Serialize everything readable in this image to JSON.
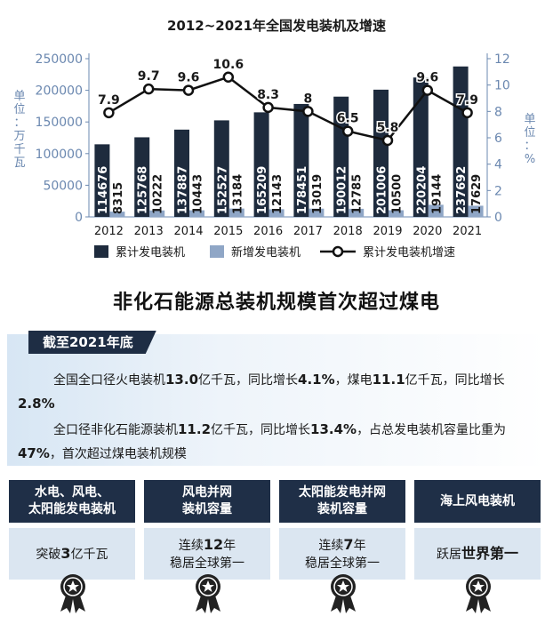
{
  "chart_data": {
    "type": "bar",
    "title": "2012~2021年全国发电装机及增速",
    "categories": [
      "2012",
      "2013",
      "2014",
      "2015",
      "2016",
      "2017",
      "2018",
      "2019",
      "2020",
      "2021"
    ],
    "series": [
      {
        "name": "累计发电装机",
        "axis": "left",
        "kind": "bar",
        "color": "#1e2b3d",
        "values": [
          114676,
          125768,
          137887,
          152527,
          165209,
          178451,
          190012,
          201006,
          220204,
          237692
        ]
      },
      {
        "name": "新增发电装机",
        "axis": "left",
        "kind": "bar",
        "color": "#8fa6c6",
        "values": [
          8315,
          10222,
          10443,
          13184,
          12143,
          13019,
          12785,
          10500,
          19144,
          17629
        ]
      },
      {
        "name": "累计发电装机增速",
        "axis": "right",
        "kind": "line",
        "color": "#111111",
        "values": [
          7.9,
          9.7,
          9.6,
          10.6,
          8.3,
          8.0,
          6.5,
          5.8,
          9.6,
          7.9
        ]
      }
    ],
    "ylabel_left": "单位：万千瓦",
    "ylabel_right": "单位：%",
    "ylim_left": [
      0,
      250000
    ],
    "yticks_left": [
      "0",
      "50000",
      "100000",
      "150000",
      "200000",
      "250000"
    ],
    "ylim_right": [
      0,
      12
    ],
    "yticks_right": [
      "0",
      "2",
      "4",
      "6",
      "8",
      "10",
      "12"
    ],
    "legend_position": "bottom",
    "grid": false
  },
  "headline": "非化石能源总装机规模首次超过煤电",
  "summary": {
    "tag": "截至2021年底",
    "p1": [
      "全国全口径火电装机",
      "13.0",
      "亿千瓦，同比增长",
      "4.1%",
      "，煤电",
      "11.1",
      "亿千瓦，同比增长",
      "2.8%"
    ],
    "p2": [
      "全口径非化石能源装机",
      "11.2",
      "亿千瓦，同比增长",
      "13.4%",
      "，占总发电装机容量比重为",
      "47%",
      "，首次超过煤电装机规模"
    ]
  },
  "cards": [
    {
      "head": [
        "水电、风电、",
        "太阳能发电装机"
      ],
      "body": [
        "突破",
        "3",
        "亿千瓦"
      ]
    },
    {
      "head": [
        "风电并网",
        "装机容量"
      ],
      "body": [
        "连续",
        "12",
        "年",
        "稳居全球第一"
      ]
    },
    {
      "head": [
        "太阳能发电并网",
        "装机容量"
      ],
      "body": [
        "连续",
        "7",
        "年",
        "稳居全球第一"
      ]
    },
    {
      "head": [
        "海上风电装机"
      ],
      "body": [
        "跃居",
        "世界第一"
      ]
    }
  ],
  "colors": {
    "dark_navy": "#1f2f47",
    "light_blue": "#dbe6f1",
    "axis_blue": "#6b88b0",
    "new_bar": "#8fa6c6"
  }
}
